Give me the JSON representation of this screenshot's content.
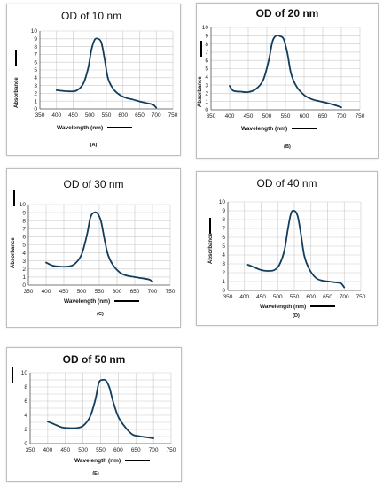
{
  "chart_data": [
    {
      "id": "A",
      "type": "line",
      "title": "OD of 10 nm",
      "panel_label": "(A)",
      "xlabel": "Wavelength (nm)",
      "ylabel": "Absorbance",
      "xlim": [
        350,
        750
      ],
      "ylim": [
        0,
        10
      ],
      "xticks": [
        350,
        400,
        450,
        500,
        550,
        600,
        650,
        700,
        750
      ],
      "yticks": [
        0,
        1,
        2,
        3,
        4,
        5,
        6,
        7,
        8,
        9,
        10
      ],
      "grid": true,
      "series": [
        {
          "x": [
            400,
            420,
            440,
            460,
            480,
            495,
            505,
            515,
            525,
            535,
            545,
            555,
            570,
            590,
            610,
            630,
            650,
            670,
            690,
            700
          ],
          "y": [
            2.4,
            2.3,
            2.25,
            2.35,
            3.2,
            5.2,
            7.6,
            8.9,
            9.0,
            8.5,
            6.3,
            3.9,
            2.6,
            1.8,
            1.4,
            1.2,
            0.95,
            0.75,
            0.55,
            0.15
          ]
        }
      ]
    },
    {
      "id": "B",
      "type": "line",
      "title": "OD of 20 nm",
      "panel_label": "(B)",
      "xlabel": "Wavelength (nm)",
      "ylabel": "Absorbance",
      "xlim": [
        350,
        750
      ],
      "ylim": [
        0,
        10
      ],
      "xticks": [
        350,
        400,
        450,
        500,
        550,
        600,
        650,
        700,
        750
      ],
      "yticks": [
        0,
        1,
        2,
        3,
        4,
        5,
        6,
        7,
        8,
        9,
        10
      ],
      "grid": true,
      "series": [
        {
          "x": [
            400,
            410,
            430,
            450,
            470,
            490,
            505,
            515,
            525,
            535,
            545,
            555,
            565,
            580,
            600,
            620,
            640,
            660,
            680,
            700
          ],
          "y": [
            2.9,
            2.3,
            2.2,
            2.15,
            2.5,
            3.6,
            6.0,
            8.3,
            9.0,
            8.95,
            8.6,
            6.9,
            4.4,
            2.8,
            1.8,
            1.3,
            1.05,
            0.85,
            0.6,
            0.3
          ]
        }
      ]
    },
    {
      "id": "C",
      "type": "line",
      "title": "OD of 30 nm",
      "panel_label": "(C)",
      "xlabel": "Wavelength (nm)",
      "ylabel": "Absorbance",
      "xlim": [
        350,
        750
      ],
      "ylim": [
        0,
        10
      ],
      "xticks": [
        350,
        400,
        450,
        500,
        550,
        600,
        650,
        700,
        750
      ],
      "yticks": [
        0,
        1,
        2,
        3,
        4,
        5,
        6,
        7,
        8,
        9,
        10
      ],
      "grid": true,
      "series": [
        {
          "x": [
            400,
            420,
            440,
            460,
            480,
            500,
            515,
            525,
            535,
            545,
            555,
            565,
            575,
            590,
            610,
            630,
            650,
            670,
            690,
            700
          ],
          "y": [
            2.8,
            2.4,
            2.3,
            2.3,
            2.6,
            3.8,
            6.2,
            8.4,
            9.0,
            8.9,
            7.9,
            5.6,
            3.7,
            2.4,
            1.5,
            1.15,
            1.0,
            0.85,
            0.7,
            0.45
          ]
        }
      ]
    },
    {
      "id": "D",
      "type": "line",
      "title": "OD of 40 nm",
      "panel_label": "(D)",
      "xlabel": "Wavelength (nm)",
      "ylabel": "Absorbance",
      "xlim": [
        350,
        750
      ],
      "ylim": [
        0,
        10
      ],
      "xticks": [
        350,
        400,
        450,
        500,
        550,
        600,
        650,
        700,
        750
      ],
      "yticks": [
        0,
        1,
        2,
        3,
        4,
        5,
        6,
        7,
        8,
        9,
        10
      ],
      "grid": true,
      "series": [
        {
          "x": [
            410,
            430,
            450,
            470,
            490,
            505,
            520,
            530,
            540,
            550,
            560,
            570,
            580,
            595,
            615,
            635,
            655,
            675,
            690,
            700
          ],
          "y": [
            2.9,
            2.6,
            2.3,
            2.2,
            2.3,
            2.9,
            4.5,
            6.8,
            8.7,
            9.0,
            8.4,
            6.3,
            3.9,
            2.4,
            1.4,
            1.1,
            1.0,
            0.9,
            0.8,
            0.35
          ]
        }
      ]
    },
    {
      "id": "E",
      "type": "line",
      "title": "OD of 50 nm",
      "panel_label": "(E)",
      "xlabel": "Wavelength (nm)",
      "ylabel": "Absorbance",
      "xlim": [
        350,
        750
      ],
      "ylim": [
        0,
        10
      ],
      "xticks": [
        350,
        400,
        450,
        500,
        550,
        600,
        650,
        700,
        750
      ],
      "yticks": [
        0,
        2,
        4,
        6,
        8,
        10
      ],
      "grid": true,
      "series": [
        {
          "x": [
            400,
            420,
            440,
            460,
            480,
            500,
            520,
            535,
            545,
            555,
            565,
            575,
            585,
            600,
            620,
            640,
            660,
            680,
            700
          ],
          "y": [
            3.1,
            2.7,
            2.3,
            2.2,
            2.2,
            2.5,
            3.8,
            6.2,
            8.6,
            9.0,
            8.9,
            7.9,
            6.0,
            3.8,
            2.3,
            1.3,
            1.05,
            0.9,
            0.75
          ]
        }
      ]
    }
  ]
}
